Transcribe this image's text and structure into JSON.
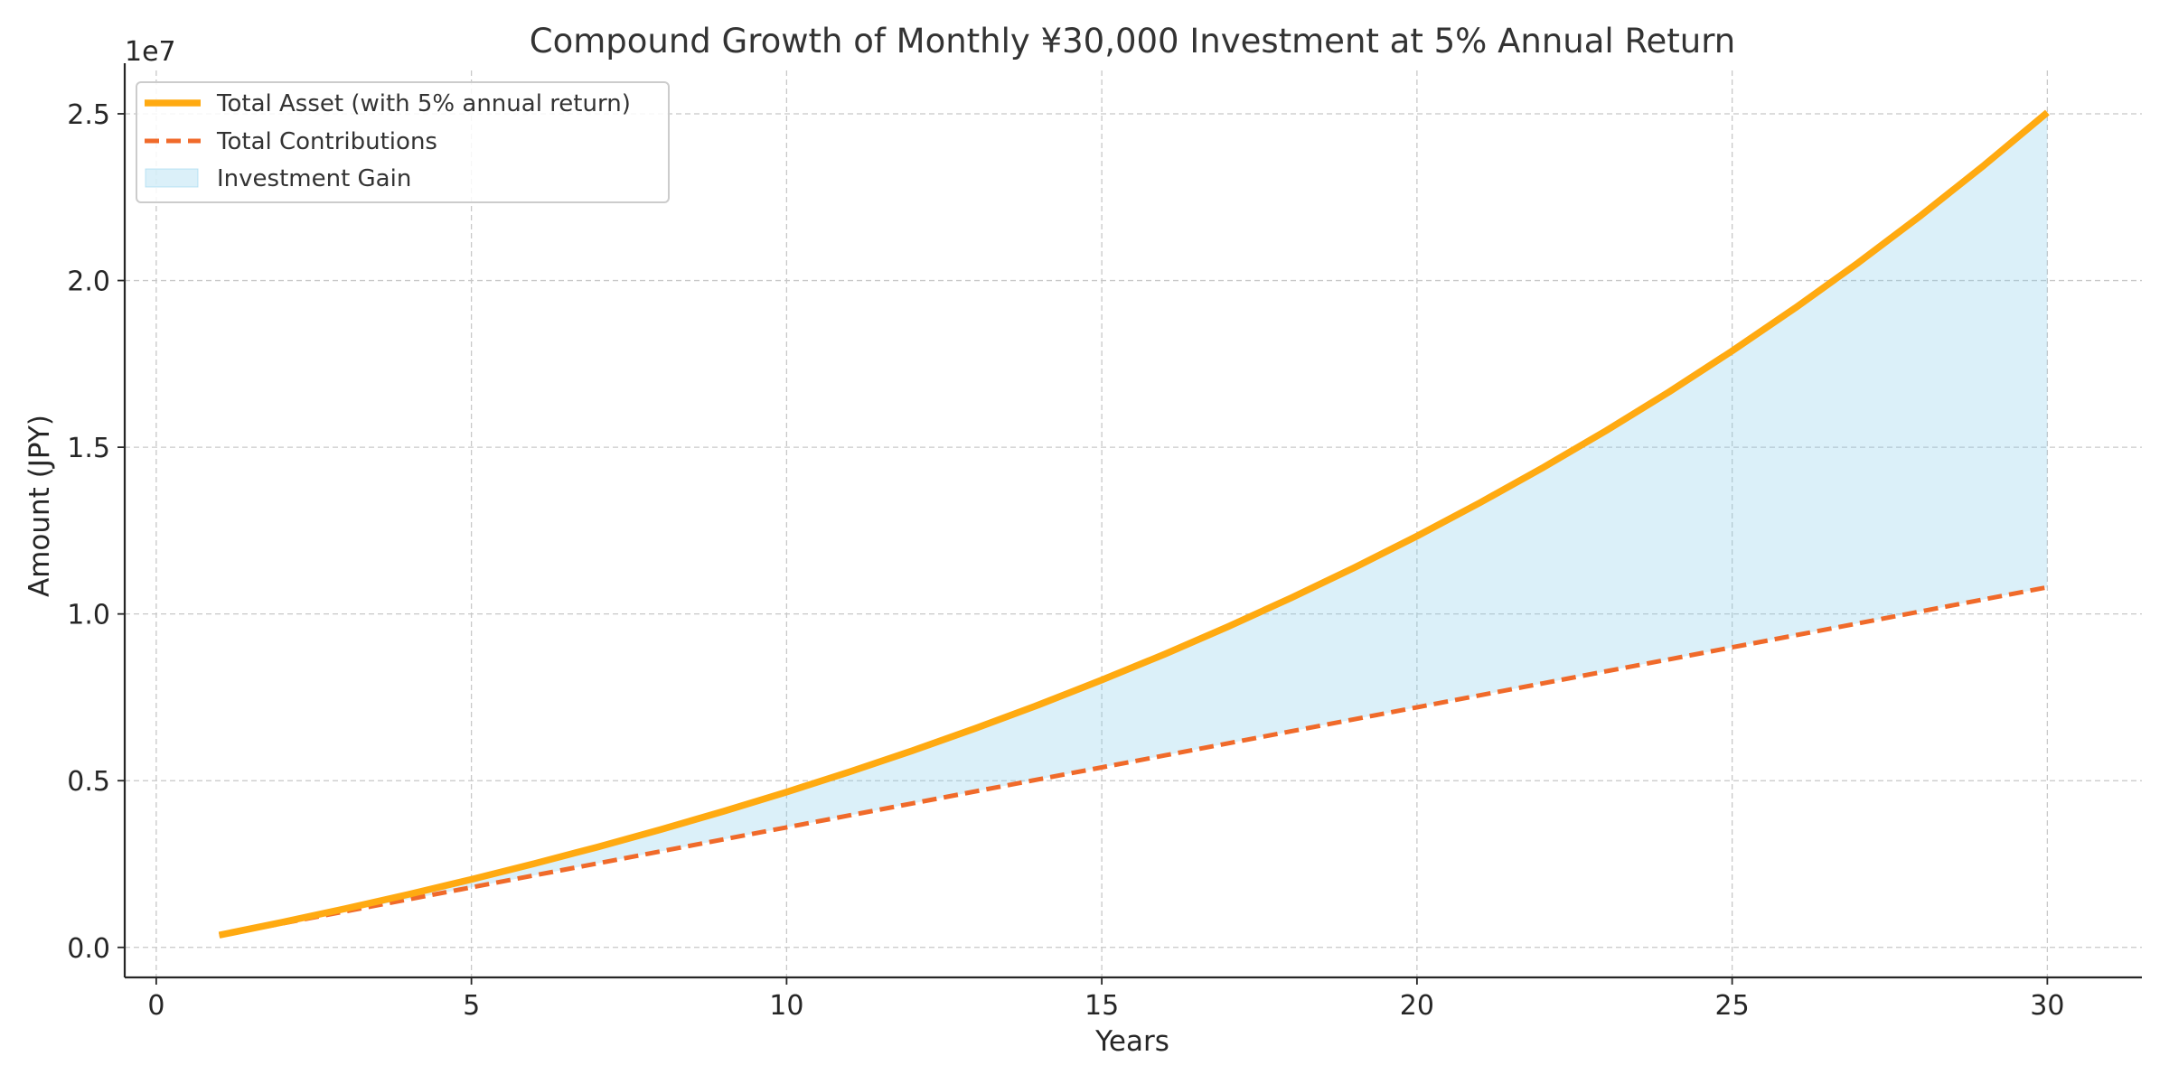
{
  "chart_data": {
    "type": "line",
    "title": "Compound Growth of Monthly ¥30,000 Investment at 5% Annual Return",
    "xlabel": "Years",
    "ylabel": "Amount (JPY)",
    "y_offset_label": "1e7",
    "xlim": [
      -0.5,
      31.5
    ],
    "ylim": [
      -900000,
      26300000
    ],
    "xticks": [
      0,
      5,
      10,
      15,
      20,
      25,
      30
    ],
    "xtick_labels": [
      "0",
      "5",
      "10",
      "15",
      "20",
      "25",
      "30"
    ],
    "yticks": [
      0,
      5000000,
      10000000,
      15000000,
      20000000,
      25000000
    ],
    "ytick_labels": [
      "0.0",
      "0.5",
      "1.0",
      "1.5",
      "2.0",
      "2.5"
    ],
    "grid": true,
    "legend_position": "top-left",
    "x": [
      1,
      2,
      3,
      4,
      5,
      6,
      7,
      8,
      9,
      10,
      11,
      12,
      13,
      14,
      15,
      16,
      17,
      18,
      19,
      20,
      21,
      22,
      23,
      24,
      25,
      26,
      27,
      28,
      29,
      30
    ],
    "series": [
      {
        "name": "Total Asset (with 5% annual return)",
        "style": "solid",
        "color": "#FFAA11",
        "values": [
          368344,
          755523,
          1162513,
          1590329,
          2040037,
          2512754,
          3009651,
          3531963,
          4080990,
          4658102,
          5264744,
          5902439,
          6572797,
          7277513,
          8018380,
          8797289,
          9616237,
          10477330,
          11382787,
          12334950,
          13336290,
          14389410,
          15497050,
          16662100,
          17887620,
          19176830,
          20533120,
          21960060,
          23461430,
          25041230
        ]
      },
      {
        "name": "Total Contributions",
        "style": "dashed",
        "color": "#F06A2A",
        "values": [
          360000,
          720000,
          1080000,
          1440000,
          1800000,
          2160000,
          2520000,
          2880000,
          3240000,
          3600000,
          3960000,
          4320000,
          4680000,
          5040000,
          5400000,
          5760000,
          6120000,
          6480000,
          6840000,
          7200000,
          7560000,
          7920000,
          8280000,
          8640000,
          9000000,
          9360000,
          9720000,
          10080000,
          10440000,
          10800000
        ]
      }
    ],
    "fill": {
      "name": "Investment Gain",
      "between": [
        "Total Asset (with 5% annual return)",
        "Total Contributions"
      ],
      "color": "#87CEEB",
      "opacity": 0.3
    }
  }
}
